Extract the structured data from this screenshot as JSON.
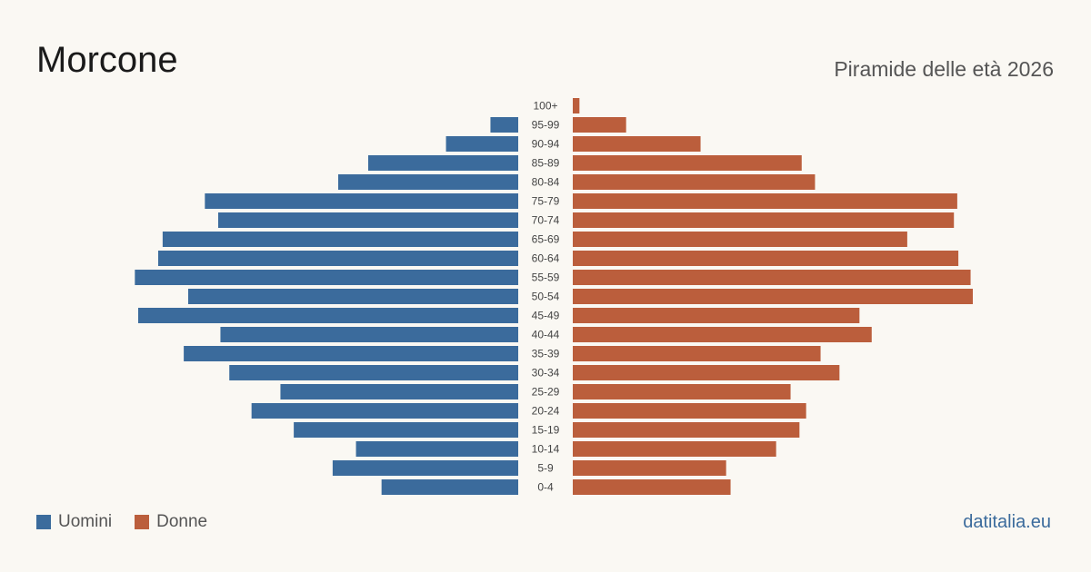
{
  "header": {
    "title": "Morcone",
    "subtitle": "Piramide delle età 2026"
  },
  "legend": {
    "items": [
      {
        "label": "Uomini",
        "color": "#3b6b9c"
      },
      {
        "label": "Donne",
        "color": "#bb5e3c"
      }
    ]
  },
  "footer": {
    "source": "datitalia.eu"
  },
  "chart_data": {
    "type": "bar",
    "orientation": "horizontal-pyramid",
    "categories": [
      "100+",
      "95-99",
      "90-94",
      "85-89",
      "80-84",
      "75-79",
      "70-74",
      "65-69",
      "60-64",
      "55-59",
      "50-54",
      "45-49",
      "40-44",
      "35-39",
      "30-34",
      "25-29",
      "20-24",
      "15-19",
      "10-14",
      "5-9",
      "0-4"
    ],
    "series": [
      {
        "name": "Uomini",
        "color": "#3b6b9c",
        "side": "left",
        "values": [
          0,
          2.5,
          6.5,
          13.5,
          16.2,
          28.2,
          27,
          32,
          32.4,
          34.5,
          29.7,
          34.2,
          26.8,
          30.1,
          26,
          21.4,
          24,
          20.2,
          14.6,
          16.7,
          12.3
        ]
      },
      {
        "name": "Donne",
        "color": "#bb5e3c",
        "side": "right",
        "values": [
          0.6,
          4.8,
          11.5,
          20.6,
          21.8,
          34.6,
          34.3,
          30.1,
          34.7,
          35.8,
          36,
          25.8,
          26.9,
          22.3,
          24,
          19.6,
          21,
          20.4,
          18.3,
          13.8,
          14.2
        ]
      }
    ],
    "xlim": [
      0,
      36
    ],
    "grid": false,
    "legend_position": "bottom-left"
  }
}
